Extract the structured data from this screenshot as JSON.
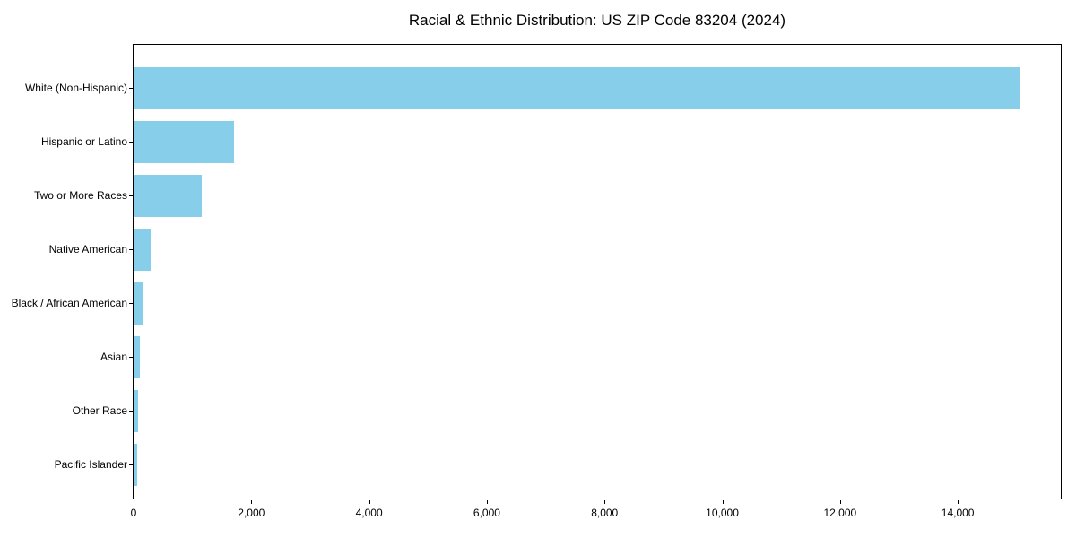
{
  "title": "Racial & Ethnic Distribution: US ZIP Code 83204 (2024)",
  "chart_data": {
    "type": "bar",
    "orientation": "horizontal",
    "title": "Racial & Ethnic Distribution: US ZIP Code 83204 (2024)",
    "xlabel": "",
    "ylabel": "",
    "categories": [
      "White (Non-Hispanic)",
      "Hispanic or Latino",
      "Two or More Races",
      "Native American",
      "Black / African American",
      "Asian",
      "Other Race",
      "Pacific Islander"
    ],
    "values": [
      15050,
      1710,
      1150,
      290,
      170,
      100,
      80,
      60
    ],
    "xlim": [
      0,
      15780
    ],
    "x_ticks": [
      0,
      2000,
      4000,
      6000,
      8000,
      10000,
      12000,
      14000
    ],
    "x_tick_labels": [
      "0",
      "2,000",
      "4,000",
      "6,000",
      "8,000",
      "10,000",
      "12,000",
      "14,000"
    ],
    "grid": false,
    "legend": null,
    "bar_color": "#87CEEB"
  },
  "colors": {
    "bar": "#87CEEB",
    "axis": "#000000",
    "text": "#000000",
    "background": "#FFFFFF"
  }
}
